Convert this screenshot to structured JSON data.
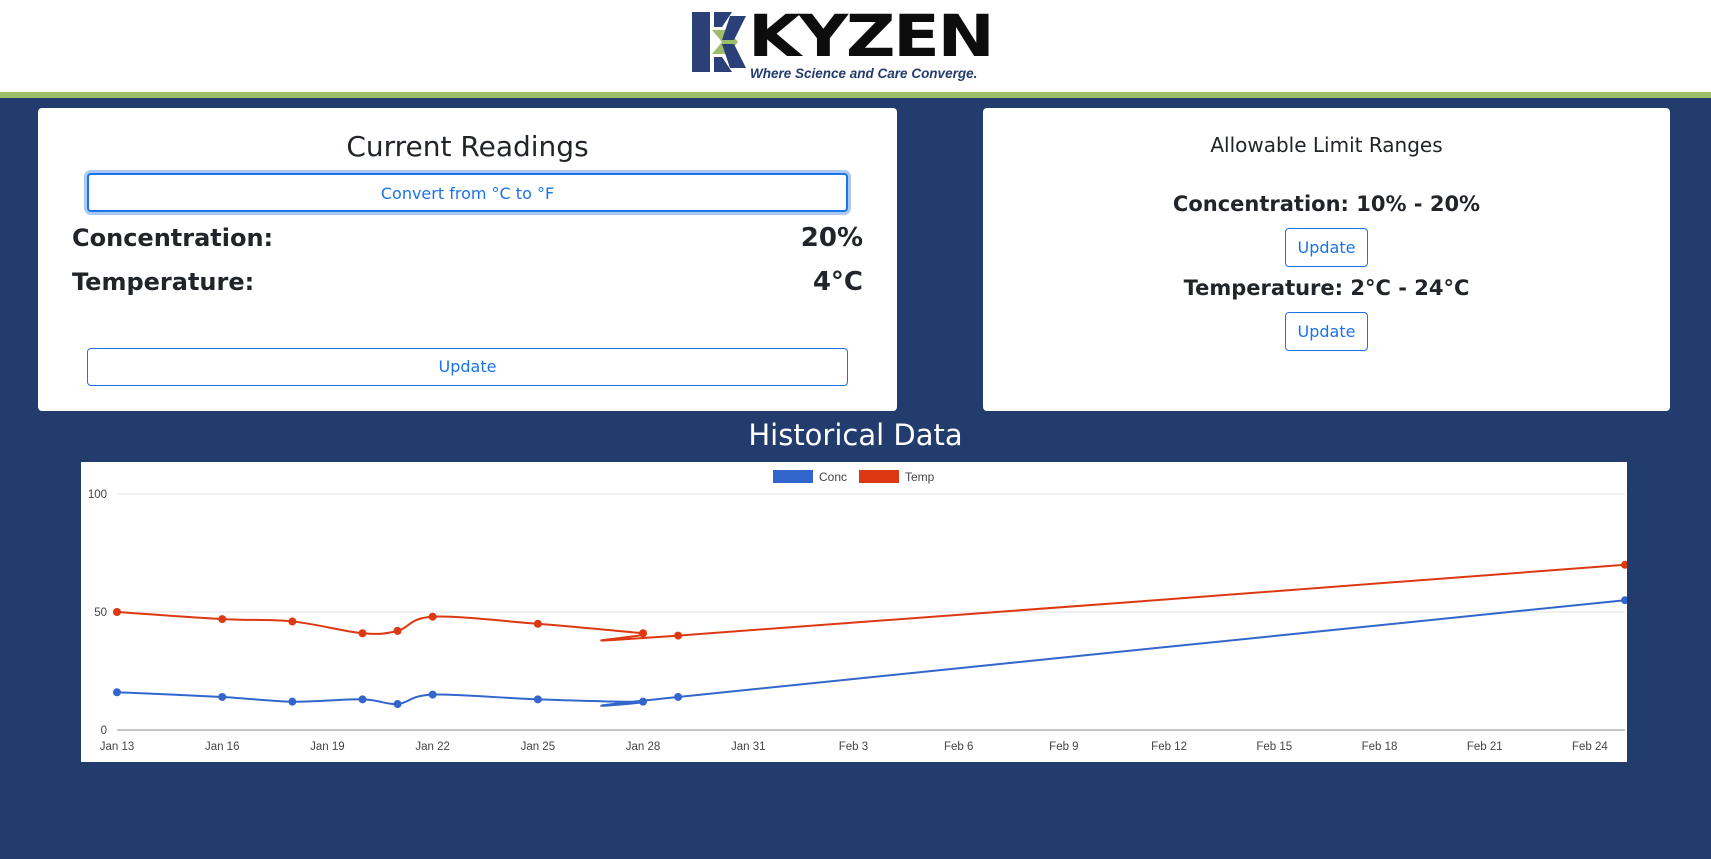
{
  "logo": {
    "word": "KYZEN",
    "tagline": "Where Science and Care Converge.",
    "colors": {
      "navy": "#2b3f78",
      "green": "#9dbd6b",
      "black": "#0d0d0d"
    }
  },
  "current_readings": {
    "title": "Current Readings",
    "convert_label": "Convert from °C to °F",
    "concentration_label": "Concentration:",
    "concentration_value": "20%",
    "temperature_label": "Temperature:",
    "temperature_value": "4°C",
    "update_label": "Update"
  },
  "limits": {
    "title": "Allowable Limit Ranges",
    "concentration_text": "Concentration: 10% - 20%",
    "concentration_update": "Update",
    "temperature_text": "Temperature: 2°C - 24°C",
    "temperature_update": "Update"
  },
  "historical": {
    "title": "Historical Data"
  },
  "chart_data": {
    "type": "line",
    "x": [
      "2024-01-13",
      "2024-01-16",
      "2024-01-18",
      "2024-01-20",
      "2024-01-21",
      "2024-01-22",
      "2024-01-25",
      "2024-01-28",
      "2024-01-29",
      "2024-02-25"
    ],
    "x_tick_labels": [
      "Jan 13",
      "Jan 16",
      "Jan 19",
      "Jan 22",
      "Jan 25",
      "Jan 28",
      "Jan 31",
      "Feb 3",
      "Feb 6",
      "Feb 9",
      "Feb 12",
      "Feb 15",
      "Feb 18",
      "Feb 21",
      "Feb 24"
    ],
    "xlim": [
      "2024-01-13",
      "2024-02-25"
    ],
    "y_tick_labels": [
      "0",
      "50",
      "100"
    ],
    "ylim": [
      0,
      100
    ],
    "series": [
      {
        "name": "Conc",
        "color": "#3366cc",
        "values": [
          16,
          14,
          12,
          13,
          11,
          15,
          13,
          12,
          14,
          55
        ]
      },
      {
        "name": "Temp",
        "color": "#dc3912",
        "values": [
          50,
          47,
          46,
          41,
          42,
          48,
          45,
          41,
          40,
          70
        ]
      }
    ],
    "legend": "top",
    "grid": true
  }
}
